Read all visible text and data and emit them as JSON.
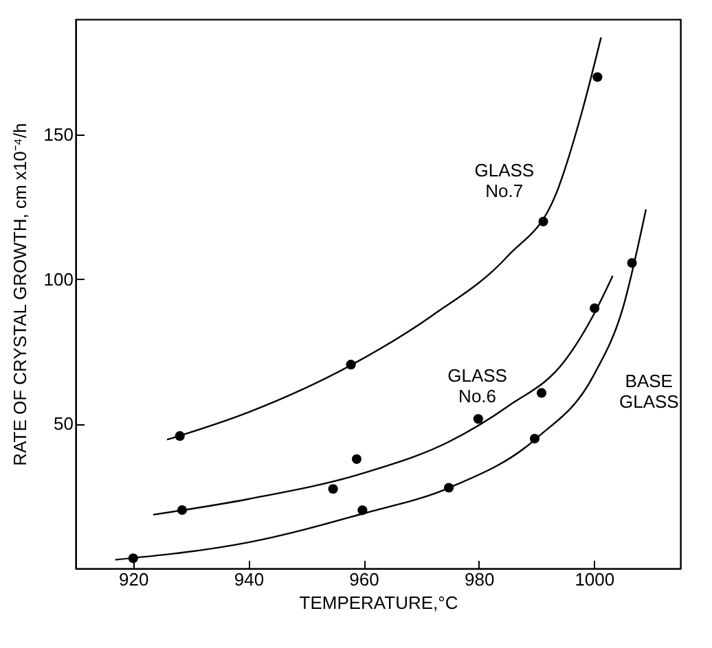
{
  "chart_data": {
    "type": "line",
    "xlabel": "TEMPERATURE,°C",
    "ylabel": "RATE OF CRYSTAL GROWTH, cm x10⁻⁴/h",
    "xlim": [
      910,
      1015
    ],
    "ylim": [
      0,
      190
    ],
    "xticks": [
      920,
      940,
      960,
      980,
      1000
    ],
    "yticks": [
      50,
      100,
      150
    ],
    "grid": false,
    "legend": false,
    "line_style": "solid",
    "series": [
      {
        "name": "GLASS No.7",
        "color": "#000000",
        "x": [
          926,
          940,
          958,
          972,
          985,
          993.5,
          998,
          1001.2
        ],
        "values": [
          44.6,
          54,
          70.5,
          87.6,
          108,
          130,
          158.6,
          183.5
        ]
      },
      {
        "name": "GLASS No.6",
        "color": "#000000",
        "x": [
          923.6,
          940,
          960,
          975,
          985,
          995,
          1000,
          1003.2
        ],
        "values": [
          18.6,
          24,
          33,
          44,
          56,
          72,
          88,
          101
        ]
      },
      {
        "name": "BASE GLASS",
        "color": "#000000",
        "x": [
          917,
          940,
          960,
          975,
          990,
          1000,
          1005,
          1009
        ],
        "values": [
          3,
          9,
          19,
          28,
          45,
          67,
          90,
          124
        ]
      },
      {
        "type": "scatter",
        "marker": "circle",
        "color": "#000000",
        "x": [
          1000.6,
          991.2,
          957.8,
          928.1,
          1000.1,
          990.9,
          979.9,
          958.8,
          954.7,
          928.5,
          1006.6,
          989.7,
          974.8,
          959.8,
          920
        ],
        "values": [
          170,
          120,
          70.5,
          45.8,
          90,
          60.7,
          51.7,
          37.8,
          27.5,
          20.2,
          105.7,
          44.9,
          27.9,
          20.1,
          3.5
        ]
      }
    ]
  }
}
